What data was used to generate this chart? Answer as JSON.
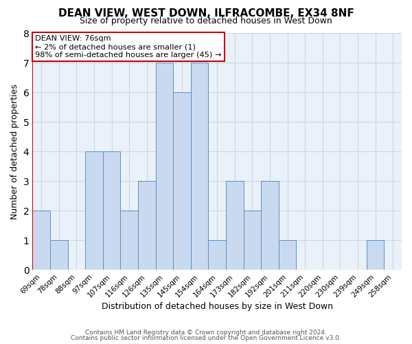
{
  "title": "DEAN VIEW, WEST DOWN, ILFRACOMBE, EX34 8NF",
  "subtitle": "Size of property relative to detached houses in West Down",
  "xlabel": "Distribution of detached houses by size in West Down",
  "ylabel": "Number of detached properties",
  "bin_labels": [
    "69sqm",
    "78sqm",
    "88sqm",
    "97sqm",
    "107sqm",
    "116sqm",
    "126sqm",
    "135sqm",
    "145sqm",
    "154sqm",
    "164sqm",
    "173sqm",
    "182sqm",
    "192sqm",
    "201sqm",
    "211sqm",
    "220sqm",
    "230sqm",
    "239sqm",
    "249sqm",
    "258sqm"
  ],
  "bar_values": [
    2,
    1,
    0,
    4,
    4,
    2,
    3,
    7,
    6,
    7,
    1,
    3,
    2,
    3,
    1,
    0,
    0,
    0,
    0,
    1,
    0
  ],
  "bar_color": "#c9d9f0",
  "bar_edge_color": "#5a8fc4",
  "annotation_title": "DEAN VIEW: 76sqm",
  "annotation_line1": "← 2% of detached houses are smaller (1)",
  "annotation_line2": "98% of semi-detached houses are larger (45) →",
  "annotation_box_color": "#ffffff",
  "annotation_box_edge": "#cc0000",
  "subject_line_color": "#cc0000",
  "subject_line_bin": 0,
  "ylim": [
    0,
    8
  ],
  "yticks": [
    0,
    1,
    2,
    3,
    4,
    5,
    6,
    7,
    8
  ],
  "grid_color": "#c8d8e8",
  "background_color": "#eaf1f8",
  "footer1": "Contains HM Land Registry data © Crown copyright and database right 2024.",
  "footer2": "Contains public sector information licensed under the Open Government Licence v3.0."
}
